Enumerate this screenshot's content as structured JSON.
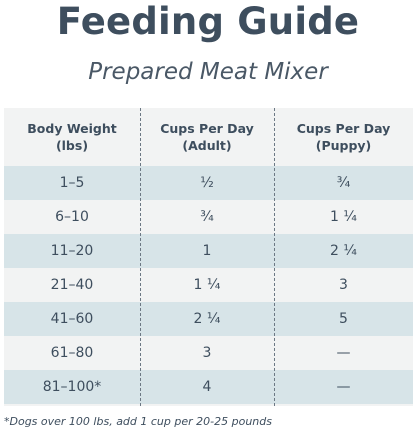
{
  "title": "Feeding Guide",
  "subtitle": "Prepared Meat Mixer",
  "table": {
    "headers": [
      [
        "Body Weight",
        "(lbs)"
      ],
      [
        "Cups Per Day",
        "(Adult)"
      ],
      [
        "Cups Per Day",
        "(Puppy)"
      ]
    ],
    "rows": [
      [
        "1–5",
        "½",
        "¾"
      ],
      [
        "6–10",
        "¾",
        "1 ¼"
      ],
      [
        "11–20",
        "1",
        "2 ¼"
      ],
      [
        "21–40",
        "1 ¼",
        "3"
      ],
      [
        "41–60",
        "2 ¼",
        "5"
      ],
      [
        "61–80",
        "3",
        "—"
      ],
      [
        "81–100*",
        "4",
        "—"
      ]
    ],
    "shaded_row_color": "#d7e4e8",
    "background_color": "#f2f3f3"
  },
  "footnote": "*Dogs over 100 lbs, add 1 cup per 20-25 pounds"
}
